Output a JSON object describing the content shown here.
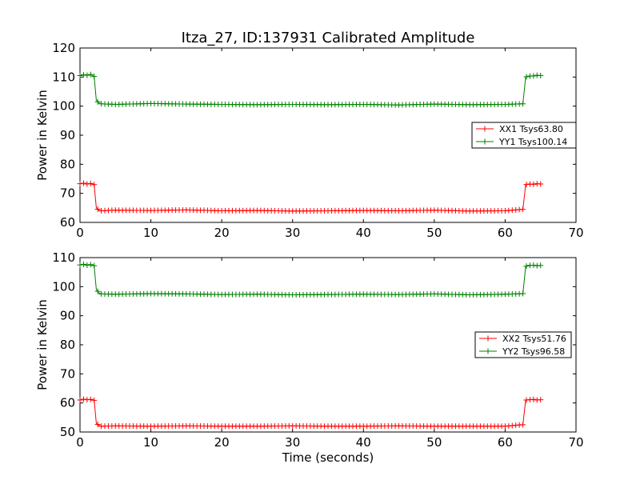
{
  "title": "Itza_27, ID:137931 Calibrated Amplitude",
  "chart_data": [
    {
      "type": "line",
      "title": "Itza_27, ID:137931 Calibrated Amplitude",
      "xlabel": "",
      "ylabel": "Power in Kelvin",
      "xlim": [
        0,
        70
      ],
      "ylim": [
        60,
        120
      ],
      "xticks": [
        0,
        10,
        20,
        30,
        40,
        50,
        60,
        70
      ],
      "yticks": [
        60,
        70,
        80,
        90,
        100,
        110,
        120
      ],
      "grid": false,
      "legend": "right",
      "marker": "+",
      "series": [
        {
          "name": "XX1 Tsys63.80",
          "color": "#ff0000",
          "x": [
            0,
            0.5,
            1,
            1.5,
            2,
            2.3,
            2.7,
            3,
            5,
            10,
            15,
            20,
            25,
            30,
            35,
            40,
            45,
            50,
            55,
            60,
            62.5,
            62.9,
            63.3,
            64,
            64.5,
            65
          ],
          "y": [
            73.3,
            73.5,
            73.2,
            73.4,
            73.0,
            65.0,
            64.1,
            64.0,
            64.2,
            64.1,
            64.3,
            64.0,
            64.1,
            63.9,
            64.0,
            64.1,
            64.0,
            64.2,
            63.9,
            64.0,
            64.5,
            73.0,
            73.2,
            73.1,
            73.3,
            73.2
          ]
        },
        {
          "name": "YY1 Tsys100.14",
          "color": "#008000",
          "x": [
            0,
            0.5,
            1,
            1.5,
            2,
            2.3,
            2.7,
            3,
            5,
            10,
            15,
            20,
            25,
            30,
            35,
            40,
            45,
            50,
            55,
            60,
            62.5,
            62.9,
            63.3,
            64,
            64.5,
            65
          ],
          "y": [
            110.5,
            110.8,
            110.6,
            110.9,
            110.2,
            102.0,
            101.0,
            100.8,
            100.6,
            100.9,
            100.7,
            100.6,
            100.5,
            100.6,
            100.5,
            100.6,
            100.4,
            100.7,
            100.5,
            100.6,
            100.8,
            110.0,
            110.3,
            110.4,
            110.6,
            110.5
          ]
        }
      ]
    },
    {
      "type": "line",
      "title": "",
      "xlabel": "Time (seconds)",
      "ylabel": "Power in Kelvin",
      "xlim": [
        0,
        70
      ],
      "ylim": [
        50,
        110
      ],
      "xticks": [
        0,
        10,
        20,
        30,
        40,
        50,
        60,
        70
      ],
      "yticks": [
        50,
        60,
        70,
        80,
        90,
        100,
        110
      ],
      "grid": false,
      "legend": "right",
      "marker": "+",
      "series": [
        {
          "name": "XX2 Tsys51.76",
          "color": "#ff0000",
          "x": [
            0,
            0.5,
            1,
            1.5,
            2,
            2.3,
            2.7,
            3,
            5,
            10,
            15,
            20,
            25,
            30,
            35,
            40,
            45,
            50,
            55,
            60,
            62.5,
            62.9,
            63.3,
            64,
            64.5,
            65
          ],
          "y": [
            61.0,
            61.3,
            61.1,
            61.2,
            60.9,
            53.0,
            52.2,
            52.0,
            52.1,
            52.0,
            52.1,
            52.0,
            52.0,
            52.1,
            52.0,
            52.0,
            52.1,
            52.0,
            52.0,
            52.0,
            52.5,
            61.0,
            61.1,
            61.2,
            61.0,
            61.1
          ]
        },
        {
          "name": "YY2 Tsys96.58",
          "color": "#008000",
          "x": [
            0,
            0.5,
            1,
            1.5,
            2,
            2.3,
            2.7,
            3,
            5,
            10,
            15,
            20,
            25,
            30,
            35,
            40,
            45,
            50,
            55,
            60,
            62.5,
            62.9,
            63.3,
            64,
            64.5,
            65
          ],
          "y": [
            107.5,
            107.7,
            107.4,
            107.6,
            107.2,
            99.0,
            97.8,
            97.5,
            97.4,
            97.6,
            97.5,
            97.3,
            97.4,
            97.2,
            97.3,
            97.4,
            97.3,
            97.5,
            97.2,
            97.4,
            97.6,
            107.0,
            107.3,
            107.4,
            107.2,
            107.3
          ]
        }
      ]
    }
  ]
}
